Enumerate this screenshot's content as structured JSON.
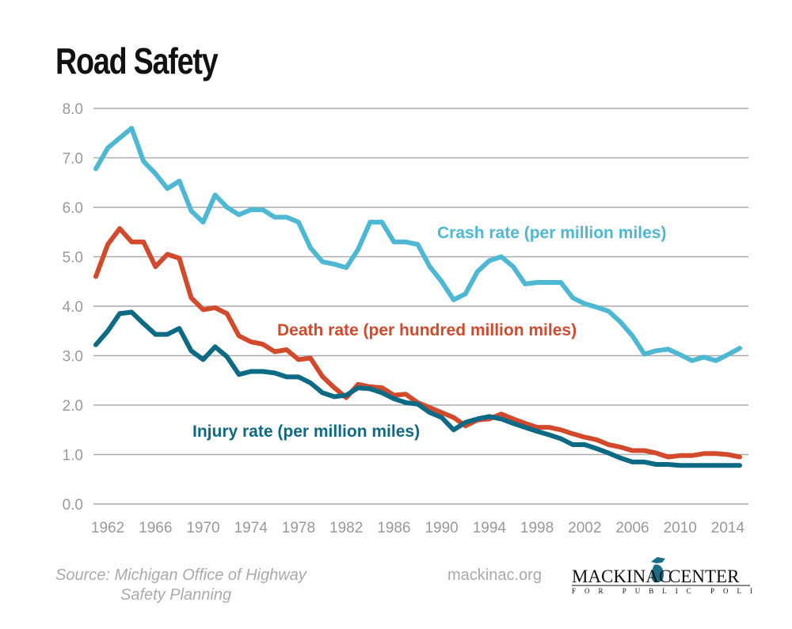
{
  "chart_data": {
    "type": "line",
    "title": "Road Safety",
    "x": [
      1961,
      1962,
      1963,
      1964,
      1965,
      1966,
      1967,
      1968,
      1969,
      1970,
      1971,
      1972,
      1973,
      1974,
      1975,
      1976,
      1977,
      1978,
      1979,
      1980,
      1981,
      1982,
      1983,
      1984,
      1985,
      1986,
      1987,
      1988,
      1989,
      1990,
      1991,
      1992,
      1993,
      1994,
      1995,
      1996,
      1997,
      1998,
      1999,
      2000,
      2001,
      2002,
      2003,
      2004,
      2005,
      2006,
      2007,
      2008,
      2009,
      2010,
      2011,
      2012,
      2013,
      2014,
      2015
    ],
    "xticks": [
      "1962",
      "1966",
      "1970",
      "1974",
      "1978",
      "1982",
      "1986",
      "1990",
      "1994",
      "1998",
      "2002",
      "2006",
      "2010",
      "2014"
    ],
    "yticks": [
      "0.0",
      "1.0",
      "2.0",
      "3.0",
      "4.0",
      "5.0",
      "6.0",
      "7.0",
      "8.0"
    ],
    "ylim": [
      0,
      8
    ],
    "xlim": [
      1961,
      2015
    ],
    "grid": "horizontal",
    "series": [
      {
        "name": "Crash rate (per million miles)",
        "color": "#4db8d3",
        "values": [
          6.78,
          7.2,
          7.4,
          7.6,
          6.93,
          6.68,
          6.38,
          6.53,
          5.93,
          5.7,
          6.25,
          6.0,
          5.85,
          5.95,
          5.95,
          5.8,
          5.8,
          5.7,
          5.18,
          4.9,
          4.85,
          4.78,
          5.15,
          5.7,
          5.7,
          5.3,
          5.3,
          5.25,
          4.8,
          4.5,
          4.13,
          4.25,
          4.7,
          4.92,
          5.0,
          4.8,
          4.45,
          4.48,
          4.48,
          4.48,
          4.17,
          4.05,
          3.98,
          3.9,
          3.68,
          3.4,
          3.03,
          3.1,
          3.13,
          3.02,
          2.9,
          2.97,
          2.9,
          3.02,
          3.15
        ]
      },
      {
        "name": "Death rate (per hundred million miles)",
        "color": "#d24a2b",
        "values": [
          4.6,
          5.25,
          5.57,
          5.3,
          5.3,
          4.8,
          5.05,
          4.97,
          4.17,
          3.93,
          3.97,
          3.85,
          3.4,
          3.28,
          3.23,
          3.08,
          3.12,
          2.92,
          2.95,
          2.58,
          2.35,
          2.15,
          2.42,
          2.37,
          2.35,
          2.2,
          2.22,
          2.05,
          1.95,
          1.85,
          1.75,
          1.58,
          1.7,
          1.72,
          1.82,
          1.72,
          1.63,
          1.55,
          1.55,
          1.5,
          1.42,
          1.35,
          1.3,
          1.2,
          1.15,
          1.08,
          1.08,
          1.03,
          0.95,
          0.98,
          0.98,
          1.02,
          1.02,
          1.0,
          0.95
        ]
      },
      {
        "name": "Injury rate (per million miles)",
        "color": "#0d6a85",
        "values": [
          3.22,
          3.5,
          3.85,
          3.88,
          3.65,
          3.43,
          3.43,
          3.55,
          3.1,
          2.92,
          3.18,
          2.98,
          2.62,
          2.68,
          2.68,
          2.65,
          2.57,
          2.57,
          2.45,
          2.25,
          2.17,
          2.2,
          2.35,
          2.33,
          2.25,
          2.13,
          2.05,
          2.02,
          1.85,
          1.75,
          1.5,
          1.65,
          1.72,
          1.77,
          1.72,
          1.63,
          1.55,
          1.47,
          1.4,
          1.32,
          1.2,
          1.2,
          1.12,
          1.03,
          0.93,
          0.85,
          0.85,
          0.8,
          0.8,
          0.78,
          0.78,
          0.78,
          0.78,
          0.78,
          0.78
        ]
      }
    ]
  },
  "footer": {
    "source_line1": "Source: Michigan Office of Highway",
    "source_line2": "Safety Planning",
    "website": "mackinac.org",
    "logo_text": "MACKINAC CENTER",
    "logo_subtext": "FOR PUBLIC POLICY"
  }
}
